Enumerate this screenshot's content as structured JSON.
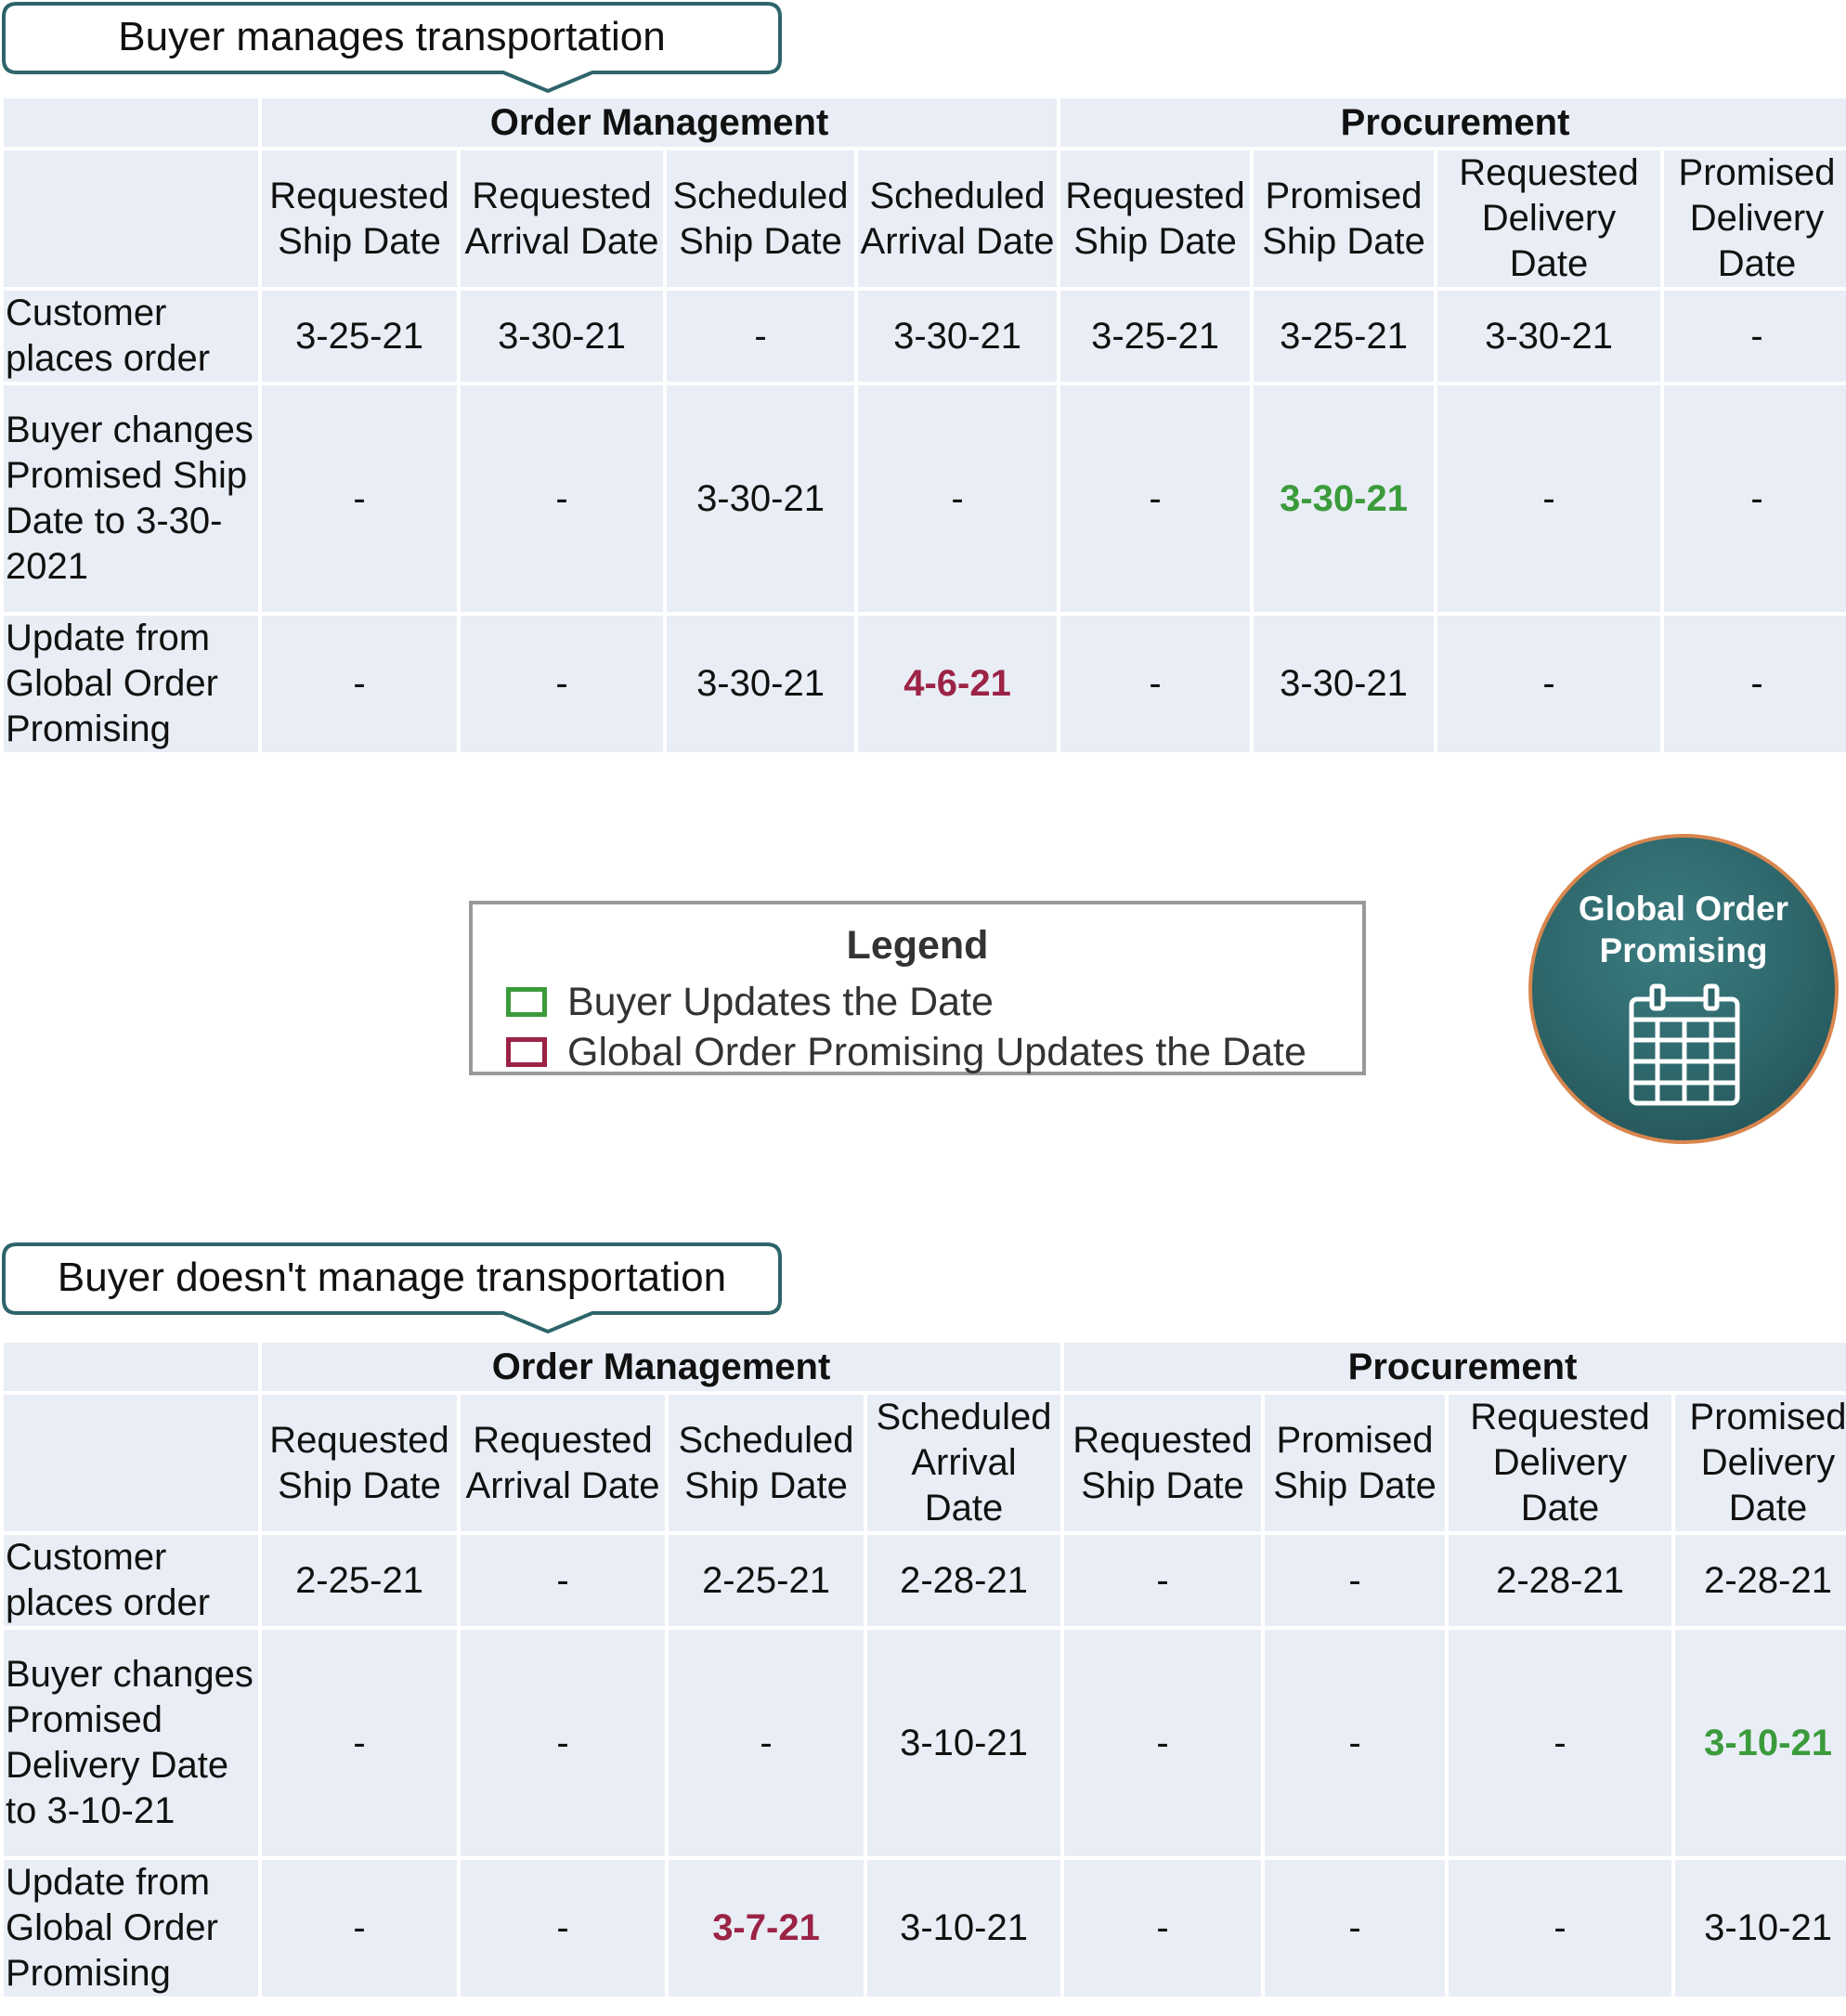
{
  "sections": [
    {
      "callout": "Buyer manages transportation",
      "groups": [
        "Order Management",
        "Procurement"
      ],
      "columns": [
        "Requested Ship Date",
        "Requested Arrival Date",
        "Scheduled Ship Date",
        "Scheduled Arrival Date",
        "Requested Ship Date",
        "Promised Ship Date",
        "Requested Delivery Date",
        "Promised Delivery Date"
      ],
      "rows": [
        {
          "label": "Customer places order",
          "cells": [
            "3-25-21",
            "3-30-21",
            "-",
            "3-30-21",
            "3-25-21",
            "3-25-21",
            "3-30-21",
            "-"
          ]
        },
        {
          "label": "Buyer changes Promised Ship Date to 3-30-2021",
          "cells": [
            "-",
            "-",
            "3-30-21",
            "-",
            "-",
            "3-30-21",
            "-",
            "-"
          ]
        },
        {
          "label": "Update from Global Order Promising",
          "cells": [
            "-",
            "-",
            "3-30-21",
            "4-6-21",
            "-",
            "3-30-21",
            "-",
            "-"
          ]
        }
      ]
    },
    {
      "callout": "Buyer doesn't manage transportation",
      "groups": [
        "Order Management",
        "Procurement"
      ],
      "columns": [
        "Requested Ship Date",
        "Requested Arrival Date",
        "Scheduled Ship Date",
        "Scheduled Arrival Date",
        "Requested Ship Date",
        "Promised Ship Date",
        "Requested Delivery Date",
        "Promised Delivery Date"
      ],
      "rows": [
        {
          "label": "Customer places order",
          "cells": [
            "2-25-21",
            "-",
            "2-25-21",
            "2-28-21",
            "-",
            "-",
            "2-28-21",
            "2-28-21"
          ]
        },
        {
          "label": "Buyer changes Promised Delivery Date to 3-10-21",
          "cells": [
            "-",
            "-",
            "-",
            "3-10-21",
            "-",
            "-",
            "-",
            "3-10-21"
          ]
        },
        {
          "label": "Update from Global Order Promising",
          "cells": [
            "-",
            "-",
            "3-7-21",
            "3-10-21",
            "-",
            "-",
            "-",
            "3-10-21"
          ]
        }
      ]
    }
  ],
  "legend": {
    "title": "Legend",
    "items": [
      {
        "label": "Buyer Updates the Date",
        "color": "#3b9b3b"
      },
      {
        "label": "Global Order Promising Updates the Date",
        "color": "#9b2346"
      }
    ]
  },
  "badge": {
    "title_line1": "Global Order",
    "title_line2": "Promising",
    "icon": "calendar-icon"
  },
  "colors": {
    "teal": "#2d6569",
    "cell_bg": "#e9edf5",
    "buyer_update": "#3b9b3b",
    "gop_update": "#9b2346",
    "badge_ring": "#d9864e"
  }
}
